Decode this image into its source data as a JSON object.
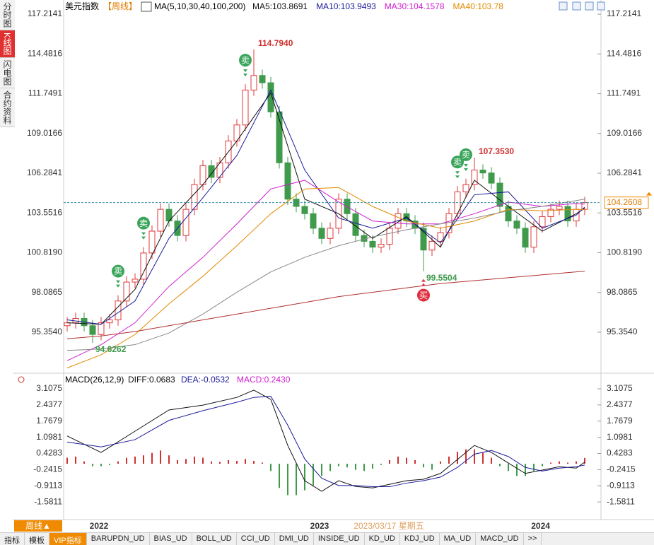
{
  "sidebar": [
    "分时图",
    "K线图",
    "闪电图",
    "合约资料"
  ],
  "chart_data": [
    {
      "type": "candlestick",
      "title": "美元指数",
      "period": "【周线】",
      "indicator": "MA(5,10,30,40,100,200)",
      "candles": {
        "up_color": "#e0383a",
        "down_color": "#3f9a4c",
        "open": [
          95.8,
          96.0,
          96.3,
          95.8,
          95.2,
          96.0,
          96.2,
          97.5,
          98.8,
          99.0,
          100.8,
          102.3,
          103.8,
          103.0,
          102.0,
          103.8,
          105.5,
          106.8,
          106.0,
          107.0,
          108.5,
          109.6,
          112.0,
          113.0,
          112.5,
          110.5,
          107.0,
          104.5,
          104.0,
          103.5,
          102.5,
          101.8,
          102.5,
          104.5,
          103.5,
          102.0,
          101.6,
          101.2,
          101.4,
          102.5,
          103.5,
          103.0,
          102.5,
          101.0,
          101.6,
          102.2,
          103.5,
          105.0,
          105.5,
          106.5,
          106.3,
          105.6,
          104.0,
          103.0,
          102.5,
          101.2,
          102.6,
          103.3,
          103.8,
          104.0,
          103.0,
          103.8
        ],
        "high": [
          96.4,
          96.7,
          96.7,
          96.2,
          96.4,
          96.6,
          97.9,
          99.2,
          99.4,
          101.2,
          102.7,
          104.2,
          104.2,
          103.4,
          104.2,
          105.9,
          107.2,
          107.2,
          107.4,
          108.9,
          110.0,
          112.4,
          114.794,
          113.4,
          112.9,
          110.9,
          107.4,
          104.9,
          104.4,
          103.9,
          102.9,
          102.9,
          104.9,
          104.9,
          103.9,
          102.4,
          102.0,
          101.8,
          102.9,
          103.9,
          103.9,
          103.4,
          102.9,
          102.0,
          102.6,
          103.9,
          105.4,
          105.9,
          107.353,
          106.9,
          106.7,
          106.0,
          104.4,
          103.4,
          102.9,
          103.0,
          103.7,
          104.2,
          104.4,
          104.4,
          104.2,
          104.66
        ],
        "low": [
          95.4,
          95.6,
          95.4,
          94.6262,
          94.8,
          95.6,
          95.8,
          97.1,
          98.4,
          98.6,
          100.4,
          101.9,
          102.6,
          101.6,
          101.6,
          103.4,
          105.1,
          105.6,
          105.6,
          106.6,
          108.1,
          109.2,
          111.6,
          112.1,
          110.1,
          106.6,
          104.1,
          103.6,
          103.1,
          102.1,
          101.4,
          101.4,
          102.1,
          103.1,
          101.6,
          101.2,
          100.8,
          100.8,
          101.0,
          102.1,
          102.6,
          102.1,
          99.5504,
          100.6,
          101.2,
          101.8,
          103.1,
          104.6,
          105.1,
          105.9,
          105.2,
          103.6,
          102.6,
          102.1,
          100.8,
          100.8,
          102.2,
          102.9,
          103.4,
          102.6,
          102.6,
          103.4
        ],
        "close": [
          96.0,
          96.3,
          95.8,
          95.2,
          96.0,
          96.2,
          97.5,
          98.8,
          99.0,
          100.8,
          102.3,
          103.8,
          103.0,
          102.0,
          103.8,
          105.5,
          106.8,
          106.0,
          107.0,
          108.5,
          109.6,
          112.0,
          113.0,
          112.5,
          110.5,
          107.0,
          104.5,
          104.0,
          103.5,
          102.5,
          101.8,
          102.5,
          104.5,
          103.5,
          102.0,
          101.6,
          101.2,
          101.4,
          102.5,
          103.5,
          103.0,
          102.5,
          101.0,
          101.6,
          102.2,
          103.5,
          105.0,
          105.5,
          106.5,
          106.3,
          105.6,
          104.0,
          103.0,
          102.5,
          101.2,
          102.6,
          103.3,
          103.8,
          104.0,
          103.0,
          103.8,
          104.2608
        ]
      },
      "ma_lines": [
        {
          "label": "MA5:103.8691",
          "color": "#111111",
          "x": [
            0,
            4,
            8,
            12,
            16,
            20,
            24,
            28,
            32,
            36,
            40,
            44,
            48,
            52,
            56,
            60,
            61
          ],
          "values": [
            96.0,
            95.9,
            98.3,
            103.0,
            105.5,
            108.5,
            111.8,
            104.5,
            103.5,
            101.8,
            103.3,
            101.2,
            105.8,
            104.0,
            102.3,
            103.5,
            103.87
          ]
        },
        {
          "label": "MA10:103.9493",
          "color": "#1a1a9a",
          "x": [
            0,
            4,
            8,
            12,
            16,
            20,
            24,
            28,
            32,
            36,
            40,
            44,
            48,
            52,
            56,
            60,
            61
          ],
          "values": [
            96.2,
            95.9,
            97.5,
            101.8,
            104.6,
            107.5,
            112.0,
            106.5,
            103.2,
            102.5,
            103.2,
            101.5,
            104.8,
            105.0,
            102.5,
            103.4,
            103.95
          ]
        },
        {
          "label": "MA30:104.1578",
          "color": "#d020d0",
          "x": [
            0,
            4,
            8,
            12,
            16,
            20,
            24,
            28,
            32,
            36,
            40,
            44,
            48,
            52,
            56,
            60,
            61
          ],
          "values": [
            93.4,
            94.5,
            96.0,
            98.5,
            100.5,
            102.8,
            105.2,
            105.8,
            104.3,
            103.0,
            102.8,
            102.8,
            103.5,
            104.3,
            104.0,
            104.2,
            104.16
          ]
        },
        {
          "label": "MA40:103.78",
          "color": "#e08a00",
          "x": [
            0,
            4,
            8,
            12,
            16,
            20,
            24,
            28,
            32,
            36,
            40,
            44,
            48,
            52,
            56,
            60,
            61
          ],
          "values": [
            92.9,
            93.8,
            95.2,
            97.3,
            99.2,
            101.3,
            103.5,
            105.2,
            105.3,
            104.0,
            103.0,
            102.5,
            103.0,
            103.8,
            103.7,
            103.8,
            103.78
          ]
        },
        {
          "color": "#888888",
          "x": [
            0,
            4,
            8,
            12,
            16,
            20,
            24,
            28,
            32,
            36,
            40,
            44,
            48,
            52,
            56,
            60,
            61
          ],
          "values": [
            94.1,
            94.2,
            94.5,
            95.3,
            96.6,
            98.1,
            99.5,
            100.5,
            101.3,
            101.9,
            102.4,
            102.8,
            103.2,
            103.7,
            104.0,
            104.4,
            104.5
          ]
        },
        {
          "color": "#b03030",
          "x": [
            0,
            4,
            8,
            12,
            16,
            20,
            24,
            28,
            32,
            36,
            40,
            44,
            48,
            52,
            56,
            60,
            61
          ],
          "values": [
            94.9,
            95.1,
            95.4,
            95.8,
            96.2,
            96.6,
            97.0,
            97.4,
            97.8,
            98.1,
            98.4,
            98.7,
            98.9,
            99.1,
            99.3,
            99.5,
            99.55
          ]
        }
      ],
      "ylim": [
        92.68,
        117.8
      ],
      "yticks": [
        117.2141,
        114.4816,
        111.7491,
        109.0166,
        106.2841,
        103.5516,
        {
          "value": 100.819,
          "label": "100.8190"
        },
        98.0865,
        {
          "value": 95.354,
          "label": "95.3540"
        }
      ],
      "extremes": [
        {
          "index": 22,
          "field": "high",
          "label": "114.7940",
          "color": "#d03030"
        },
        {
          "index": 48,
          "field": "high",
          "label": "107.3530",
          "color": "#d03030"
        },
        {
          "index": 42,
          "field": "low",
          "label": "99.5504",
          "color": "#3f9a4c"
        },
        {
          "index": 3,
          "field": "low",
          "label": "94.6262",
          "color": "#3f9a4c"
        }
      ],
      "signals": [
        {
          "index": 6,
          "label": "卖"
        },
        {
          "index": 9,
          "label": "卖"
        },
        {
          "index": 21,
          "label": "卖"
        },
        {
          "index": 46,
          "label": "卖"
        },
        {
          "index": 47,
          "label": "卖"
        },
        {
          "index": 42,
          "label": "买"
        }
      ],
      "xticks": [
        {
          "value": 3.75,
          "label": "2022"
        },
        {
          "value": 29.75,
          "label": "2023"
        },
        {
          "value": 55.8,
          "label": "2024"
        }
      ],
      "cursor_date": "2023/03/17 星期五",
      "period_button": "周线▲"
    },
    {
      "type": "macd",
      "title": "MACD(26,12,9)",
      "diff_label": "DIFF:0.0683",
      "dea_label": "DEA:-0.0532",
      "macd_label": "MACD:0.2430",
      "diff": {
        "color": "#111111",
        "x": [
          0,
          4,
          8,
          12,
          16,
          20,
          22,
          24,
          26,
          28,
          30,
          32,
          34,
          36,
          38,
          40,
          42,
          44,
          46,
          48,
          50,
          52,
          54,
          56,
          58,
          60,
          61
        ],
        "values": [
          1.15,
          0.47,
          1.35,
          2.23,
          2.43,
          2.75,
          3.05,
          2.67,
          0.76,
          -0.7,
          -1.14,
          -0.7,
          -0.94,
          -1.0,
          -0.85,
          -0.7,
          -0.64,
          -0.4,
          0.18,
          0.76,
          0.47,
          0.03,
          -0.4,
          -0.26,
          -0.12,
          -0.18,
          0.0683
        ]
      },
      "dea": {
        "color": "#1a1a9a",
        "x": [
          0,
          4,
          8,
          12,
          16,
          20,
          22,
          24,
          26,
          28,
          30,
          32,
          34,
          36,
          38,
          40,
          42,
          44,
          46,
          48,
          50,
          52,
          54,
          56,
          58,
          60,
          61
        ],
        "values": [
          0.9,
          0.7,
          1.0,
          1.8,
          2.2,
          2.55,
          2.75,
          2.8,
          1.6,
          0.2,
          -0.6,
          -0.9,
          -0.9,
          -0.95,
          -0.95,
          -0.8,
          -0.7,
          -0.55,
          -0.15,
          0.4,
          0.55,
          0.3,
          -0.15,
          -0.3,
          -0.18,
          -0.12,
          -0.0532
        ]
      },
      "histogram": [
        0.25,
        0.3,
        0.1,
        -0.1,
        -0.1,
        -0.05,
        0.1,
        0.25,
        0.3,
        0.35,
        0.45,
        0.55,
        0.35,
        0.15,
        0.2,
        0.3,
        0.25,
        0.1,
        0.08,
        0.15,
        0.12,
        0.2,
        0.12,
        0.05,
        -0.3,
        -1.0,
        -1.3,
        -1.3,
        -1.1,
        -0.9,
        -0.5,
        -0.3,
        -0.1,
        -0.15,
        -0.25,
        -0.3,
        -0.2,
        -0.05,
        0.15,
        0.3,
        0.25,
        0.15,
        -0.15,
        -0.25,
        0.1,
        0.3,
        0.5,
        0.6,
        0.6,
        0.45,
        0.25,
        -0.1,
        -0.3,
        -0.5,
        -0.5,
        -0.3,
        -0.1,
        0.05,
        0.1,
        0.05,
        0.1,
        0.243
      ],
      "ylim": [
        -2.31,
        3.4
      ],
      "yticks": [
        3.1075,
        2.4377,
        1.7679,
        1.0981,
        0.4283,
        -0.2415,
        -0.9113,
        -1.5811
      ]
    }
  ],
  "tabs": [
    "指标",
    "模板",
    "VIP指标",
    "BARUPDN_UD",
    "BIAS_UD",
    "BOLL_UD",
    "CCI_UD",
    "DMI_UD",
    "INSIDE_UD",
    "KD_UD",
    "KDJ_UD",
    "MA_UD",
    "MACD_UD",
    ">>"
  ]
}
